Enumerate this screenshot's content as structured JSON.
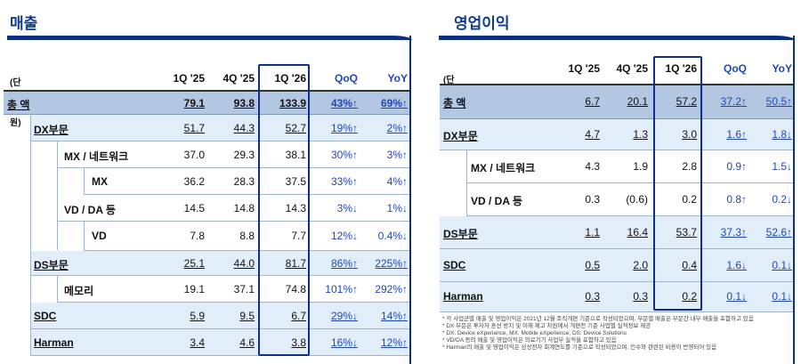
{
  "revenue": {
    "title": "매출",
    "unit": "(단위: 조원)",
    "headers": [
      "1Q '25",
      "4Q '25",
      "1Q '26",
      "QoQ",
      "YoY"
    ],
    "rows": [
      {
        "label": "총 액",
        "values": [
          "79.1",
          "93.8",
          "133.9",
          "43%↑",
          "69%↑"
        ]
      },
      {
        "label": "DX부문",
        "values": [
          "51.7",
          "44.3",
          "52.7",
          "19%↑",
          "2%↑"
        ]
      },
      {
        "label": "MX / 네트워크",
        "values": [
          "37.0",
          "29.3",
          "38.1",
          "30%↑",
          "3%↑"
        ]
      },
      {
        "label": "MX",
        "values": [
          "36.2",
          "28.3",
          "37.5",
          "33%↑",
          "4%↑"
        ]
      },
      {
        "label": "VD / DA 등",
        "values": [
          "14.5",
          "14.8",
          "14.3",
          "3%↓",
          "1%↓"
        ]
      },
      {
        "label": "VD",
        "values": [
          "7.8",
          "8.8",
          "7.7",
          "12%↓",
          "0.4%↓"
        ]
      },
      {
        "label": "DS부문",
        "values": [
          "25.1",
          "44.0",
          "81.7",
          "86%↑",
          "225%↑"
        ]
      },
      {
        "label": "메모리",
        "values": [
          "19.1",
          "37.1",
          "74.8",
          "101%↑",
          "292%↑"
        ]
      },
      {
        "label": "SDC",
        "values": [
          "5.9",
          "9.5",
          "6.7",
          "29%↓",
          "14%↑"
        ]
      },
      {
        "label": "Harman",
        "values": [
          "3.4",
          "4.6",
          "3.8",
          "16%↓",
          "12%↑"
        ]
      }
    ]
  },
  "op_income": {
    "title": "영업이익",
    "unit": "(단위: 조원)",
    "headers": [
      "1Q '25",
      "4Q '25",
      "1Q '26",
      "QoQ",
      "YoY"
    ],
    "rows": [
      {
        "label": "총 액",
        "values": [
          "6.7",
          "20.1",
          "57.2",
          "37.2↑",
          "50.5↑"
        ]
      },
      {
        "label": "DX부문",
        "values": [
          "4.7",
          "1.3",
          "3.0",
          "1.6↑",
          "1.8↓"
        ]
      },
      {
        "label": "MX / 네트워크",
        "values": [
          "4.3",
          "1.9",
          "2.8",
          "0.9↑",
          "1.5↓"
        ]
      },
      {
        "label": "VD / DA 등",
        "values": [
          "0.3",
          "(0.6)",
          "0.2",
          "0.8↑",
          "0.2↓"
        ]
      },
      {
        "label": "DS부문",
        "values": [
          "1.1",
          "16.4",
          "53.7",
          "37.3↑",
          "52.6↑"
        ]
      },
      {
        "label": "SDC",
        "values": [
          "0.5",
          "2.0",
          "0.4",
          "1.6↓",
          "0.1↓"
        ]
      },
      {
        "label": "Harman",
        "values": [
          "0.3",
          "0.3",
          "0.2",
          "0.1↓",
          "0.1↓"
        ]
      }
    ],
    "notes": [
      "* 각 사업군별 매출 및 영업이익은 2021년 12월 조직개편 기준으로 작성되었으며, 부문별 매출은 부문간 내부 매출을 포함하고 있음",
      "* DX 부문은 투자자 혼선 방지 및 이해 제고 차원에서 개편전 기준 사업별 실적정보 제공",
      "* DX: Device eXperience, MX: Mobile eXperience, DS: Device Solutions",
      "* VD/DA 등의 매출 및 영업이익은 의료기기 사업부 실적을 포함하고 있음",
      "* Harman의 매출 및 영업이익은 삼성전자 회계연도를 기준으로 작성되었으며, 인수와 관련된 비용이 반영되어 있음"
    ]
  },
  "colors": {
    "accent": "#0d2f80",
    "total_row": "#b4c7e2",
    "segment_row": "#e1eef9",
    "pct": "#1f47b8"
  }
}
